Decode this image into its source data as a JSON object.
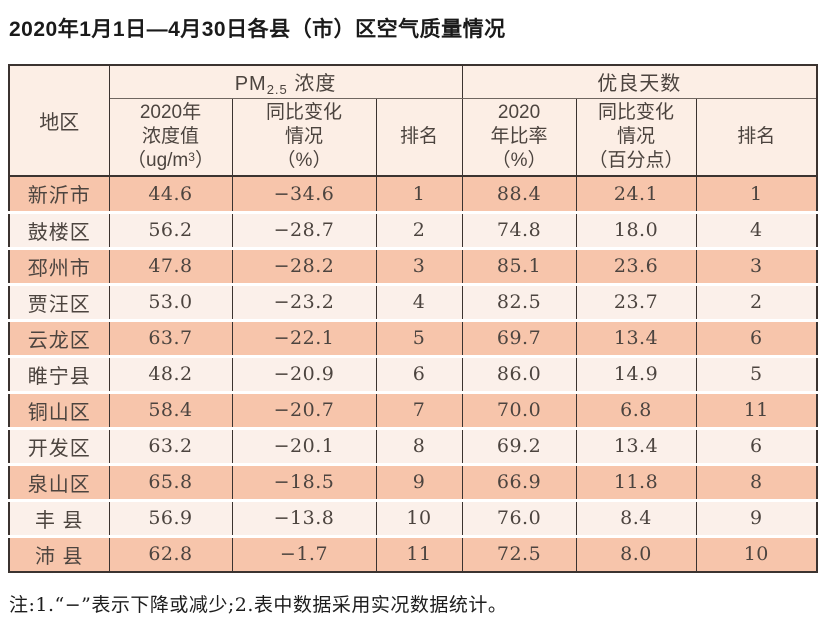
{
  "title": "2020年1月1日—4月30日各县（市）区空气质量情况",
  "note": "注:1.“−”表示下降或减少;2.表中数据采用实况数据统计。",
  "colors": {
    "row_highlight_bg": "#f7c5ab",
    "row_light_bg": "#fbf0ea",
    "header_bg": "#fceee5",
    "border_dark": "#3b3330",
    "border_mid": "#6f6660",
    "table_text": "#4c443f",
    "title_text": "#1a1a1a"
  },
  "table": {
    "header": {
      "region": "地区",
      "pm_group": {
        "prefix": "PM",
        "sub": "2.5",
        "suffix": " 浓度"
      },
      "good_group": "优良天数",
      "pm_value": {
        "line1": "2020年",
        "line2": "浓度值",
        "unit_prefix": "（ug/m",
        "unit_sup": "3",
        "unit_suffix": "）"
      },
      "pm_change": {
        "line1": "同比变化",
        "line2": "情况",
        "line3": "（%）"
      },
      "pm_rank": "排名",
      "good_ratio": {
        "line1": "2020",
        "line2": "年比率",
        "line3": "（%）"
      },
      "good_change": {
        "line1": "同比变化",
        "line2": "情况",
        "line3": "（百分点）"
      },
      "good_rank": "排名"
    },
    "rows": [
      {
        "region": "新沂市",
        "pm_value": "44.6",
        "pm_change": "−34.6",
        "pm_rank": "1",
        "good_ratio": "88.4",
        "good_change": "24.1",
        "good_rank": "1"
      },
      {
        "region": "鼓楼区",
        "pm_value": "56.2",
        "pm_change": "−28.7",
        "pm_rank": "2",
        "good_ratio": "74.8",
        "good_change": "18.0",
        "good_rank": "4"
      },
      {
        "region": "邳州市",
        "pm_value": "47.8",
        "pm_change": "−28.2",
        "pm_rank": "3",
        "good_ratio": "85.1",
        "good_change": "23.6",
        "good_rank": "3"
      },
      {
        "region": "贾汪区",
        "pm_value": "53.0",
        "pm_change": "−23.2",
        "pm_rank": "4",
        "good_ratio": "82.5",
        "good_change": "23.7",
        "good_rank": "2"
      },
      {
        "region": "云龙区",
        "pm_value": "63.7",
        "pm_change": "−22.1",
        "pm_rank": "5",
        "good_ratio": "69.7",
        "good_change": "13.4",
        "good_rank": "6"
      },
      {
        "region": "睢宁县",
        "pm_value": "48.2",
        "pm_change": "−20.9",
        "pm_rank": "6",
        "good_ratio": "86.0",
        "good_change": "14.9",
        "good_rank": "5"
      },
      {
        "region": "铜山区",
        "pm_value": "58.4",
        "pm_change": "−20.7",
        "pm_rank": "7",
        "good_ratio": "70.0",
        "good_change": "6.8",
        "good_rank": "11"
      },
      {
        "region": "开发区",
        "pm_value": "63.2",
        "pm_change": "−20.1",
        "pm_rank": "8",
        "good_ratio": "69.2",
        "good_change": "13.4",
        "good_rank": "6"
      },
      {
        "region": "泉山区",
        "pm_value": "65.8",
        "pm_change": "−18.5",
        "pm_rank": "9",
        "good_ratio": "66.9",
        "good_change": "11.8",
        "good_rank": "8"
      },
      {
        "region": "丰 县",
        "pm_value": "56.9",
        "pm_change": "−13.8",
        "pm_rank": "10",
        "good_ratio": "76.0",
        "good_change": "8.4",
        "good_rank": "9"
      },
      {
        "region": "沛 县",
        "pm_value": "62.8",
        "pm_change": "−1.7",
        "pm_rank": "11",
        "good_ratio": "72.5",
        "good_change": "8.0",
        "good_rank": "10"
      }
    ]
  }
}
